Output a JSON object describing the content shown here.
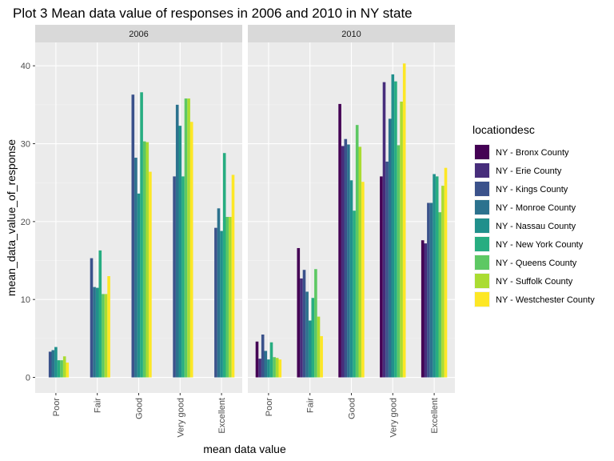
{
  "chart_data": {
    "type": "bar",
    "title": "Plot 3  Mean data value of responses in 2006 and 2010 in NY state",
    "xlabel": "mean data value",
    "ylabel": "mean_data_value_of_response",
    "ylim": [
      -2,
      43
    ],
    "yticks": [
      0,
      10,
      20,
      30,
      40
    ],
    "grid": true,
    "legend_position": "right",
    "legend_title": "locationdesc",
    "categories": [
      "Poor",
      "Fair",
      "Good",
      "Very good",
      "Excellent"
    ],
    "series": [
      {
        "name": "NY - Bronx County",
        "color": "#440154"
      },
      {
        "name": "NY - Erie County",
        "color": "#472D7B"
      },
      {
        "name": "NY - Kings County",
        "color": "#3B528B"
      },
      {
        "name": "NY - Monroe County",
        "color": "#2C728E"
      },
      {
        "name": "NY - Nassau County",
        "color": "#21908C"
      },
      {
        "name": "NY - New York County",
        "color": "#27AD81"
      },
      {
        "name": "NY - Queens County",
        "color": "#5DC863"
      },
      {
        "name": "NY - Suffolk County",
        "color": "#AADC32"
      },
      {
        "name": "NY - Westchester County",
        "color": "#FDE725"
      }
    ],
    "panels": [
      {
        "label": "2006",
        "values": {
          "Poor": [
            null,
            null,
            3.3,
            3.5,
            3.9,
            2.2,
            2.2,
            2.7,
            1.9
          ],
          "Fair": [
            null,
            null,
            15.3,
            11.6,
            11.5,
            16.3,
            10.7,
            10.7,
            13.0
          ],
          "Good": [
            null,
            null,
            36.3,
            28.2,
            23.6,
            36.6,
            30.3,
            30.2,
            26.4
          ],
          "Very good": [
            null,
            null,
            25.8,
            35.0,
            32.3,
            25.8,
            35.8,
            35.8,
            32.8
          ],
          "Excellent": [
            null,
            null,
            19.2,
            21.7,
            18.8,
            28.8,
            20.6,
            20.6,
            26.0
          ]
        }
      },
      {
        "label": "2010",
        "values": {
          "Poor": [
            4.6,
            2.4,
            5.5,
            3.4,
            2.3,
            4.5,
            2.6,
            2.5,
            2.3
          ],
          "Fair": [
            16.6,
            12.7,
            13.8,
            11.0,
            7.3,
            10.2,
            13.9,
            7.8,
            5.3
          ],
          "Good": [
            35.1,
            29.7,
            30.6,
            29.9,
            25.3,
            21.4,
            32.4,
            29.6,
            25.1
          ],
          "Very good": [
            25.8,
            37.9,
            27.7,
            33.2,
            38.9,
            38.0,
            29.8,
            35.4,
            40.3
          ],
          "Excellent": [
            17.6,
            17.2,
            22.4,
            22.4,
            26.1,
            25.8,
            21.2,
            24.6,
            26.9
          ]
        }
      }
    ]
  }
}
